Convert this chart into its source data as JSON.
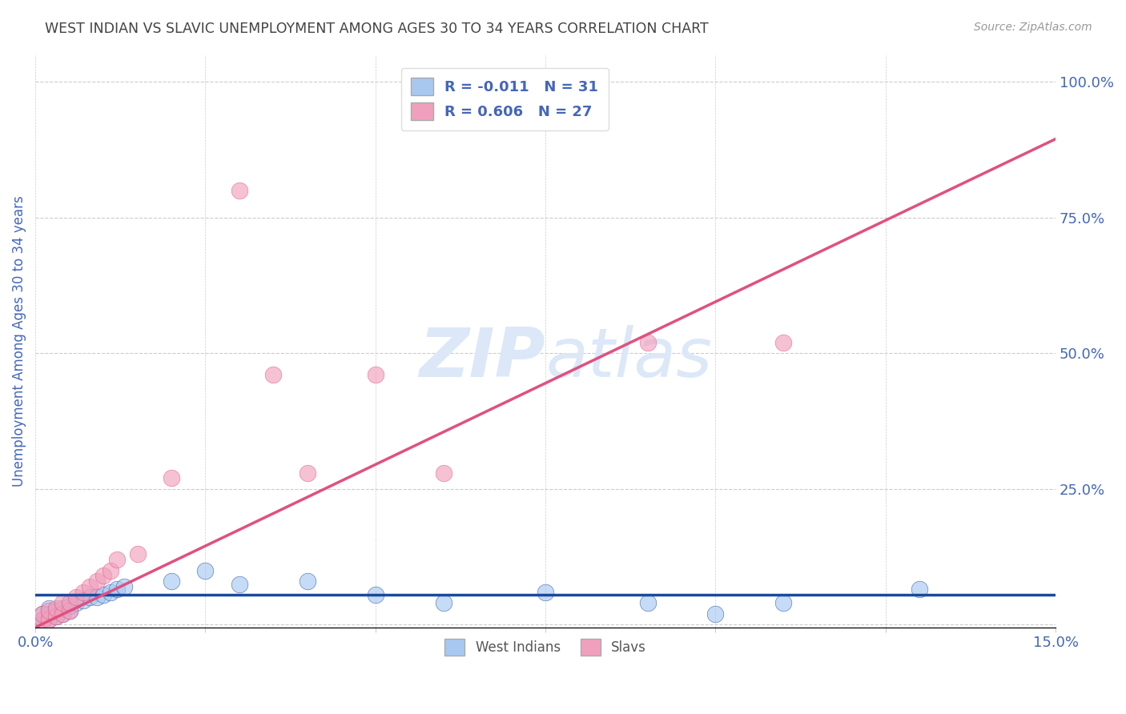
{
  "title": "WEST INDIAN VS SLAVIC UNEMPLOYMENT AMONG AGES 30 TO 34 YEARS CORRELATION CHART",
  "source": "Source: ZipAtlas.com",
  "ylabel": "Unemployment Among Ages 30 to 34 years",
  "xlim": [
    0.0,
    0.15
  ],
  "ylim": [
    -0.005,
    1.05
  ],
  "xticks": [
    0.0,
    0.025,
    0.05,
    0.075,
    0.1,
    0.125,
    0.15
  ],
  "yticks_right": [
    0.0,
    0.25,
    0.5,
    0.75,
    1.0
  ],
  "ytick_right_labels": [
    "",
    "25.0%",
    "50.0%",
    "75.0%",
    "100.0%"
  ],
  "west_indians_x": [
    0.001,
    0.001,
    0.001,
    0.002,
    0.002,
    0.002,
    0.003,
    0.003,
    0.004,
    0.004,
    0.005,
    0.005,
    0.006,
    0.007,
    0.008,
    0.009,
    0.01,
    0.011,
    0.012,
    0.013,
    0.02,
    0.025,
    0.03,
    0.04,
    0.05,
    0.06,
    0.075,
    0.09,
    0.1,
    0.11,
    0.13
  ],
  "west_indians_y": [
    0.005,
    0.01,
    0.02,
    0.01,
    0.02,
    0.03,
    0.015,
    0.025,
    0.02,
    0.03,
    0.025,
    0.035,
    0.04,
    0.045,
    0.05,
    0.05,
    0.055,
    0.06,
    0.065,
    0.07,
    0.08,
    0.1,
    0.075,
    0.08,
    0.055,
    0.04,
    0.06,
    0.04,
    0.02,
    0.04,
    0.065
  ],
  "slavs_x": [
    0.001,
    0.001,
    0.001,
    0.002,
    0.002,
    0.003,
    0.003,
    0.004,
    0.004,
    0.005,
    0.005,
    0.006,
    0.007,
    0.008,
    0.009,
    0.01,
    0.011,
    0.012,
    0.015,
    0.02,
    0.03,
    0.035,
    0.04,
    0.05,
    0.06,
    0.09,
    0.11
  ],
  "slavs_y": [
    0.002,
    0.01,
    0.02,
    0.01,
    0.025,
    0.015,
    0.03,
    0.02,
    0.04,
    0.025,
    0.04,
    0.05,
    0.06,
    0.07,
    0.08,
    0.09,
    0.1,
    0.12,
    0.13,
    0.27,
    0.8,
    0.46,
    0.28,
    0.46,
    0.28,
    0.52,
    0.52
  ],
  "wi_line_slope": 0.0,
  "wi_line_intercept": 0.055,
  "sl_line_slope": 6.0,
  "sl_line_intercept": -0.005,
  "west_indians_R": -0.011,
  "west_indians_N": 31,
  "slavs_R": 0.606,
  "slavs_N": 27,
  "blue_color": "#a8c8f0",
  "blue_line_color": "#1a4a9c",
  "pink_color": "#f0a0bc",
  "pink_line_color": "#e05080",
  "title_color": "#444444",
  "axis_label_color": "#4466bb",
  "watermark_color": "#dce8f8",
  "background_color": "#ffffff",
  "grid_color": "#cccccc"
}
